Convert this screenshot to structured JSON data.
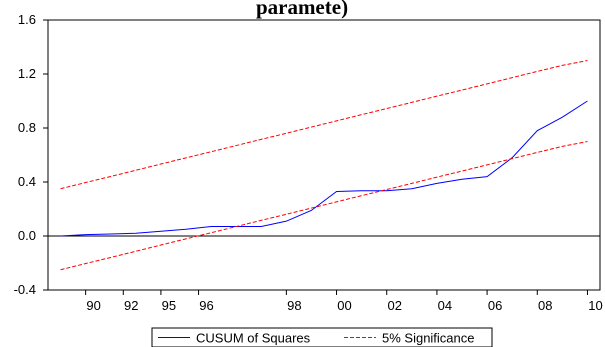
{
  "title_fragment": "paramete)",
  "chart_data": {
    "type": "line",
    "title": "paramete)",
    "ylim": [
      -0.4,
      1.6
    ],
    "yticks": [
      "1.6",
      "1.2",
      "0.8",
      "0.4",
      "0.0",
      "-0.4"
    ],
    "ytick_values": [
      1.6,
      1.2,
      0.8,
      0.4,
      0.0,
      -0.4
    ],
    "xlim": [
      1988.5,
      2010.5
    ],
    "xticks": [
      {
        "label": "90",
        "at": 1990
      },
      {
        "label": "92",
        "at": 1991.5
      },
      {
        "label": "95",
        "at": 1993
      },
      {
        "label": "96",
        "at": 1994.5
      },
      {
        "label": "98",
        "at": 1998
      },
      {
        "label": "00",
        "at": 2000
      },
      {
        "label": "02",
        "at": 2002
      },
      {
        "label": "04",
        "at": 2004
      },
      {
        "label": "06",
        "at": 2006
      },
      {
        "label": "08",
        "at": 2008
      },
      {
        "label": "10",
        "at": 2010
      }
    ],
    "x": [
      1989,
      1990,
      1991,
      1992,
      1993,
      1994,
      1995,
      1996,
      1997,
      1998,
      1999,
      2000,
      2001,
      2002,
      2003,
      2004,
      2005,
      2006,
      2007,
      2008,
      2009,
      2010
    ],
    "series": [
      {
        "name": "CUSUM of Squares",
        "color": "#0000ff",
        "style": "solid",
        "values": [
          0.0,
          0.01,
          0.015,
          0.02,
          0.035,
          0.05,
          0.07,
          0.07,
          0.07,
          0.11,
          0.19,
          0.33,
          0.335,
          0.335,
          0.35,
          0.39,
          0.42,
          0.44,
          0.58,
          0.78,
          0.88,
          1.0
        ]
      },
      {
        "name": "5% Significance",
        "color": "#ff0000",
        "style": "dashed",
        "values": [
          0.35,
          0.396,
          0.441,
          0.487,
          0.533,
          0.579,
          0.624,
          0.67,
          0.716,
          0.761,
          0.807,
          0.853,
          0.899,
          0.944,
          0.99,
          1.036,
          1.081,
          1.127,
          1.173,
          1.219,
          1.264,
          1.3
        ]
      },
      {
        "name": "",
        "color": "#ff0000",
        "style": "dashed",
        "values": [
          -0.25,
          -0.204,
          -0.159,
          -0.113,
          -0.067,
          -0.021,
          0.024,
          0.07,
          0.116,
          0.161,
          0.207,
          0.253,
          0.299,
          0.344,
          0.39,
          0.436,
          0.481,
          0.527,
          0.573,
          0.619,
          0.664,
          0.7
        ]
      }
    ],
    "zero_line": 0.0,
    "grid": false,
    "legend": {
      "position": "bottom-center",
      "entries": [
        {
          "label": "CUSUM of Squares",
          "color": "#0000ff",
          "style": "solid"
        },
        {
          "label": "5% Significance",
          "color": "#ff0000",
          "style": "dashed"
        }
      ]
    }
  }
}
